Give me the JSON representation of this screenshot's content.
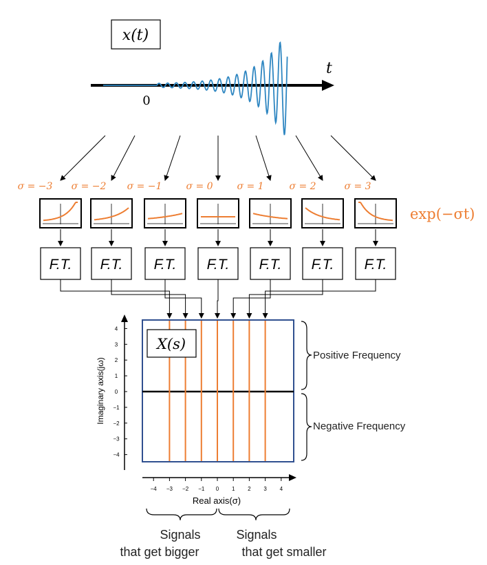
{
  "signal": {
    "box_label": "x(t)",
    "t_label": "t",
    "origin_label": "0"
  },
  "sigma_values": [
    -3,
    -2,
    -1,
    0,
    1,
    2,
    3
  ],
  "sigma_labels": [
    "σ = −3",
    "σ = −2",
    "σ = −1",
    "σ = 0",
    "σ = 1",
    "σ = 2",
    "σ = 3"
  ],
  "exp_label": "exp(−σt)",
  "ft_label": "F.T.",
  "splane": {
    "box_label": "X(s)",
    "xlabel": "Real axis(σ)",
    "ylabel": "Imaginary axis(jω)",
    "x_ticks": [
      "−4",
      "−3",
      "−2",
      "−1",
      "0",
      "1",
      "2",
      "3",
      "4"
    ],
    "y_ticks": [
      "4",
      "3",
      "2",
      "1",
      "0",
      "−1",
      "−2",
      "−3",
      "−4"
    ],
    "xlim": [
      -4,
      4
    ],
    "ylim": [
      -4,
      4
    ]
  },
  "annotations": {
    "positive_frequency": "Positive Frequency",
    "negative_frequency": "Negative Frequency",
    "bigger_line1": "Signals",
    "bigger_line2": "that get bigger",
    "smaller_line1": "Signals",
    "smaller_line2": "that get smaller"
  },
  "colors": {
    "accent": "#ED7D31",
    "wave": "#2E86C1",
    "plane_border": "#2F4F8F",
    "ink": "#000000"
  }
}
